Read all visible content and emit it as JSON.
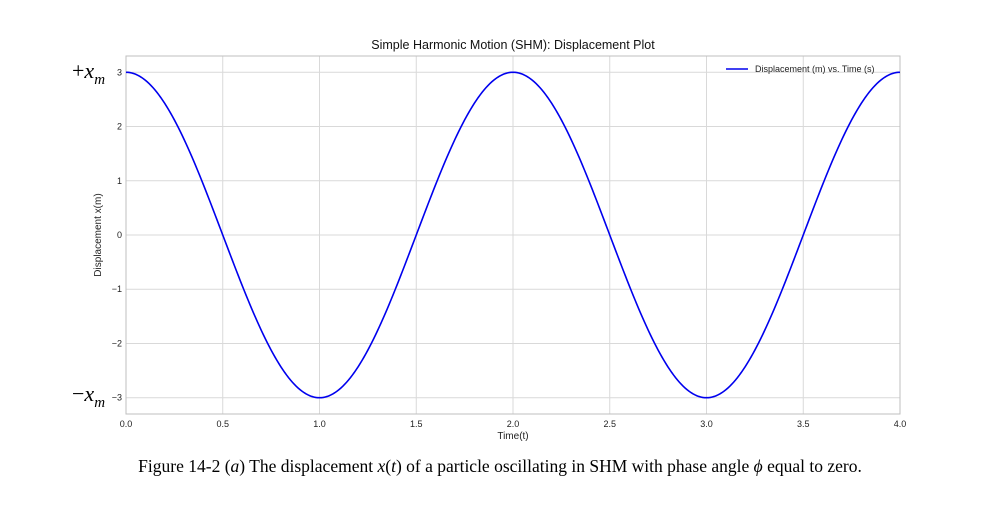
{
  "chart_data": {
    "type": "line",
    "title": "Simple Harmonic Motion (SHM): Displacement Plot",
    "xlabel": "Time(t)",
    "ylabel": "Displacement x(m)",
    "xlim": [
      0,
      4
    ],
    "ylim": [
      -3.3,
      3.3
    ],
    "x_ticks": [
      "0.0",
      "0.5",
      "1.0",
      "1.5",
      "2.0",
      "2.5",
      "3.0",
      "3.5",
      "4.0"
    ],
    "y_ticks": [
      "3",
      "2",
      "1",
      "0",
      "−1",
      "−2",
      "−3"
    ],
    "grid": true,
    "legend_position": "top-right",
    "series": [
      {
        "name": "Displacement (m) vs. Time (s)",
        "color": "#0000ee",
        "function": "x(t) = 3 cos(π t)",
        "amplitude": 3,
        "period": 2,
        "phase": 0,
        "points": [
          [
            0,
            3
          ],
          [
            0.5,
            0
          ],
          [
            1,
            -3
          ],
          [
            1.5,
            0
          ],
          [
            2,
            3
          ],
          [
            2.5,
            0
          ],
          [
            3,
            -3
          ],
          [
            3.5,
            0
          ],
          [
            4,
            3
          ]
        ]
      }
    ]
  },
  "annotations": {
    "x_max_sign": "+",
    "x_min_sign": "−",
    "x_letter": "x",
    "m_subscript": "m"
  },
  "caption": {
    "prefix": "Figure 14-2 (",
    "part": "a",
    "middle1": ") The displacement ",
    "xt": "x",
    "paren_open": "(",
    "t": "t",
    "paren_close": ")",
    "middle2": " of a particle oscillating in SHM with phase angle ",
    "phi": "ϕ",
    "suffix": "  equal to zero."
  }
}
